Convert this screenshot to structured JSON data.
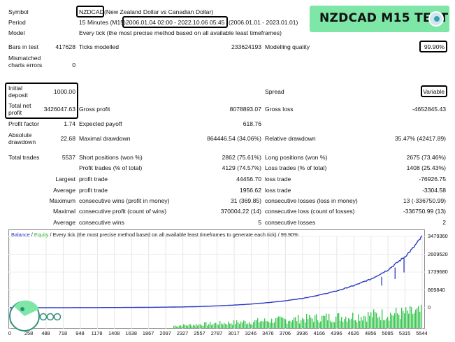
{
  "banner": {
    "title": "NZDCAD M15 TEST"
  },
  "rows": {
    "symbol": {
      "label": "Symbol",
      "code": "NZDCAD",
      "name": "(New Zealand Dollar vs Canadian Dollar)"
    },
    "period": {
      "label": "Period",
      "timeframe": "15 Minutes (M15)",
      "range": "2006.01.04 02:00 - 2022.10.06 05:45",
      "dates": "(2006.01.01 - 2023.01.01)"
    },
    "model": {
      "label": "Model",
      "value": "Every tick (the most precise method based on all available least timeframes)"
    },
    "bars": {
      "label": "Bars in test",
      "value": "417628",
      "ticks_label": "Ticks modelled",
      "ticks_value": "233624193",
      "quality_label": "Modelling quality",
      "quality_value": "99.90%"
    },
    "mismatched": {
      "label": "Mismatched charts errors",
      "value": "0"
    },
    "deposit": {
      "label": "Initial deposit",
      "value": "1000.00",
      "spread_label": "Spread",
      "spread_value": "Variable"
    },
    "profit": {
      "label": "Total net profit",
      "value": "3426047.63",
      "gross_profit_label": "Gross profit",
      "gross_profit_value": "8078893.07",
      "gross_loss_label": "Gross loss",
      "gross_loss_value": "-4652845.43"
    },
    "factor": {
      "label": "Profit factor",
      "value": "1.74",
      "payoff_label": "Expected payoff",
      "payoff_value": "618.76"
    },
    "absdd": {
      "label": "Absolute drawdown",
      "value": "22.68",
      "maxdd_label": "Maximal drawdown",
      "maxdd_value": "864446.54 (34.06%)",
      "reldd_label": "Relative drawdown",
      "reldd_value": "35.47% (42417.89)"
    },
    "trades": {
      "label": "Total trades",
      "value": "5537",
      "short_label": "Short positions (won %)",
      "short_value": "2862 (75.61%)",
      "long_label": "Long positions (won %)",
      "long_value": "2675 (73.46%)"
    },
    "ptrades": {
      "pt_label": "Profit trades (% of total)",
      "pt_value": "4129 (74.57%)",
      "lt_label": "Loss trades (% of total)",
      "lt_value": "1408 (25.43%)"
    },
    "largest": {
      "prefix": "Largest",
      "pt_label": "profit trade",
      "pt_value": "44456.70",
      "lt_label": "loss trade",
      "lt_value": "-76926.75"
    },
    "average": {
      "prefix": "Average",
      "pt_label": "profit trade",
      "pt_value": "1956.62",
      "lt_label": "loss trade",
      "lt_value": "-3304.58"
    },
    "maximum": {
      "prefix": "Maximum",
      "pt_label": "consecutive wins (profit in money)",
      "pt_value": "31 (369.85)",
      "lt_label": "consecutive losses (loss in money)",
      "lt_value": "13 (-336750.99)"
    },
    "maximal": {
      "prefix": "Maximal",
      "pt_label": "consecutive profit (count of wins)",
      "pt_value": "370004.22 (14)",
      "lt_label": "consecutive loss (count of losses)",
      "lt_value": "-336750.99 (13)"
    },
    "avgcons": {
      "prefix": "Average",
      "pt_label": "consecutive wins",
      "pt_value": "5",
      "lt_label": "consecutive losses",
      "lt_value": "2"
    }
  },
  "chart": {
    "legend_balance": "Balance",
    "legend_sep": " / ",
    "legend_equity": "Equity",
    "legend_rest": " / Every tick (the most precise method based on all available least timeframes to generate each tick) / 99.90%",
    "colors": {
      "balance": "#2b39c4",
      "volume": "#1fbf3a",
      "axis": "#8c8c8c"
    }
  },
  "chart_data": {
    "type": "line",
    "y_ticks": [
      "3479360",
      "2609520",
      "1739680",
      "869840",
      "0"
    ],
    "x_ticks": [
      "0",
      "258",
      "488",
      "718",
      "948",
      "1178",
      "1408",
      "1638",
      "1867",
      "2097",
      "2327",
      "2557",
      "2787",
      "3017",
      "3246",
      "3476",
      "3706",
      "3936",
      "4166",
      "4396",
      "4626",
      "4856",
      "5085",
      "5315",
      "5544"
    ],
    "ylim": [
      0,
      3479360
    ],
    "xlim": [
      0,
      5544
    ],
    "balance": [
      [
        0,
        1000
      ],
      [
        258,
        2000
      ],
      [
        488,
        3000
      ],
      [
        718,
        4500
      ],
      [
        948,
        6000
      ],
      [
        1178,
        8000
      ],
      [
        1408,
        10000
      ],
      [
        1638,
        14000
      ],
      [
        1867,
        20000
      ],
      [
        2097,
        28000
      ],
      [
        2327,
        40000
      ],
      [
        2557,
        60000
      ],
      [
        2787,
        90000
      ],
      [
        3017,
        130000
      ],
      [
        3246,
        180000
      ],
      [
        3476,
        250000
      ],
      [
        3706,
        340000
      ],
      [
        3936,
        460000
      ],
      [
        4166,
        620000
      ],
      [
        4396,
        820000
      ],
      [
        4626,
        1080000
      ],
      [
        4856,
        1400000
      ],
      [
        5085,
        1850000
      ],
      [
        5315,
        2500000
      ],
      [
        5420,
        2900000
      ],
      [
        5544,
        3479360
      ]
    ],
    "drawdown_spikes": [
      [
        5000,
        1350000
      ],
      [
        5180,
        1750000
      ],
      [
        5300,
        2150000
      ]
    ]
  }
}
